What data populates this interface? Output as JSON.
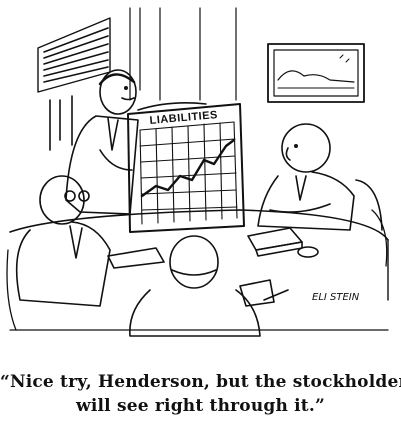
{
  "chart_label": "LIABILITIES",
  "signature": "ELI STEIN",
  "caption": {
    "line1": "“Nice try, Henderson, but the stockholders",
    "line2": "will  see right through it.”"
  },
  "colors": {
    "ink": "#111111",
    "paper": "#ffffff"
  }
}
